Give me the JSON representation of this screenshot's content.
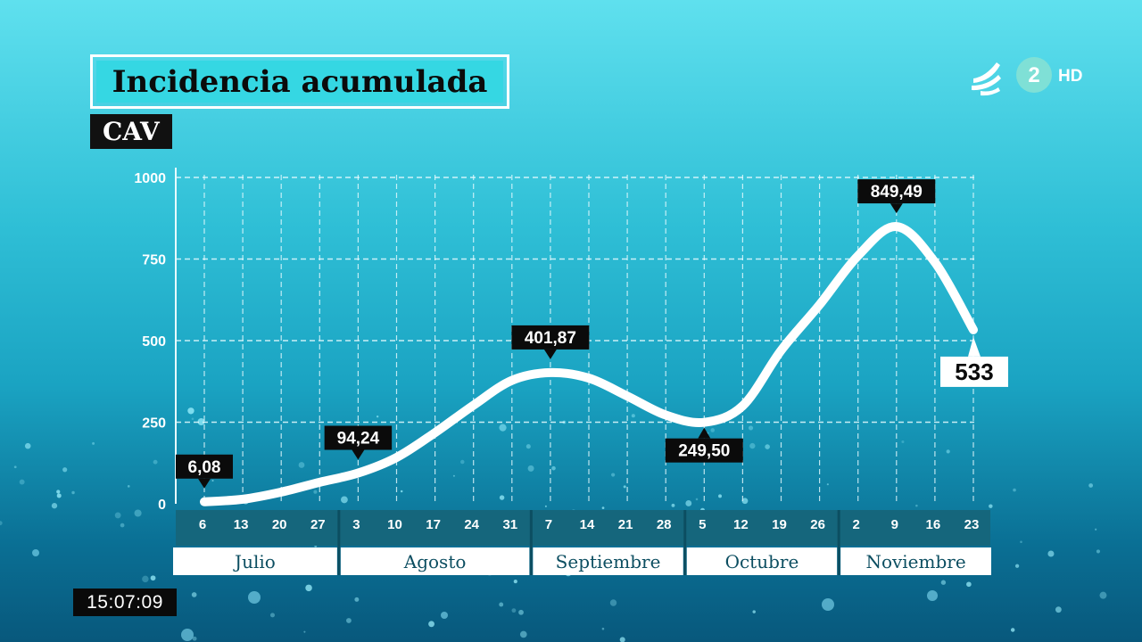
{
  "title": "Incidencia acumulada",
  "region": "CAV",
  "clock": "15:07:09",
  "channel": {
    "number": "2",
    "suffix": "HD"
  },
  "colors": {
    "accent": "#35d7e3",
    "line": "#ffffff",
    "label_bg": "#0b0b0b",
    "axis_band": "#15667c"
  },
  "chart_data": {
    "type": "line",
    "title": "Incidencia acumulada",
    "ylim": [
      0,
      1000
    ],
    "y_ticks": [
      "0",
      "250",
      "500",
      "750",
      "1000"
    ],
    "x_ticks": [
      "6",
      "13",
      "20",
      "27",
      "3",
      "10",
      "17",
      "24",
      "31",
      "7",
      "14",
      "21",
      "28",
      "5",
      "12",
      "19",
      "26",
      "2",
      "9",
      "16",
      "23"
    ],
    "months": [
      "Julio",
      "Agosto",
      "Septiembre",
      "Octubre",
      "Noviembre"
    ],
    "series": [
      {
        "x": [
          "2020-07-06",
          "2020-07-13",
          "2020-07-20",
          "2020-07-27",
          "2020-08-03",
          "2020-08-10",
          "2020-08-17",
          "2020-08-24",
          "2020-08-31",
          "2020-09-07",
          "2020-09-14",
          "2020-09-21",
          "2020-09-28",
          "2020-10-05",
          "2020-10-12",
          "2020-10-19",
          "2020-10-26",
          "2020-11-02",
          "2020-11-09",
          "2020-11-16",
          "2020-11-23"
        ],
        "values": [
          6.08,
          14,
          36,
          66,
          94.24,
          142,
          218,
          302,
          378,
          401.87,
          385,
          330,
          272,
          249.5,
          300,
          470,
          610,
          760,
          849.49,
          740,
          533
        ]
      }
    ],
    "annotations": [
      {
        "index": 0,
        "label": "6,08",
        "position": "above"
      },
      {
        "index": 4,
        "label": "94,24",
        "position": "above"
      },
      {
        "index": 9,
        "label": "401,87",
        "position": "above"
      },
      {
        "index": 13,
        "label": "249,50",
        "position": "below"
      },
      {
        "index": 18,
        "label": "849,49",
        "position": "above"
      },
      {
        "index": 20,
        "label": "533",
        "position": "final"
      }
    ],
    "grid": true
  }
}
